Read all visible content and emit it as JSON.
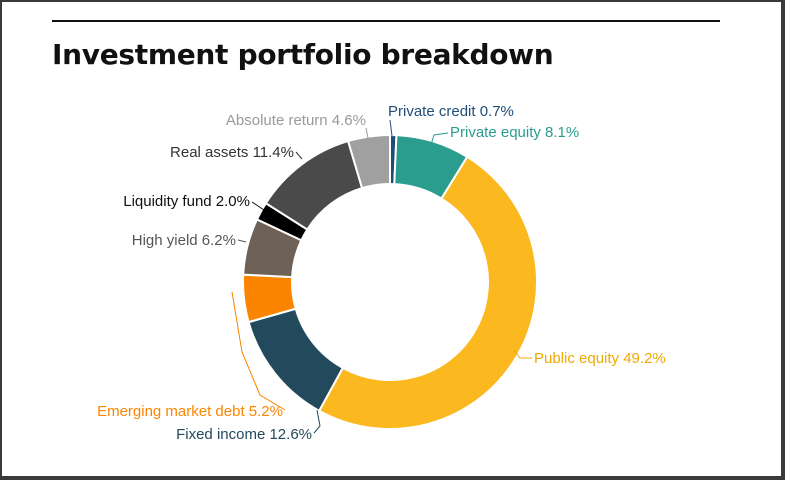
{
  "header": {
    "title": "Investment portfolio breakdown"
  },
  "chart_data": {
    "type": "pie",
    "variant": "donut",
    "title": "Investment portfolio breakdown",
    "slices": [
      {
        "label": "Private credit",
        "value": 0.7,
        "color": "#1e4d78",
        "text_color": "#1e4d78",
        "display": "Private credit 0.7%"
      },
      {
        "label": "Private equity",
        "value": 8.1,
        "color": "#2a9d8f",
        "text_color": "#2a9d8f",
        "display": "Private equity 8.1%"
      },
      {
        "label": "Public equity",
        "value": 49.2,
        "color": "#fbb81f",
        "text_color": "#f0a800",
        "display": "Public equity 49.2%"
      },
      {
        "label": "Fixed income",
        "value": 12.6,
        "color": "#234a5c",
        "text_color": "#234a5c",
        "display": "Fixed income 12.6%"
      },
      {
        "label": "Emerging market debt",
        "value": 5.2,
        "color": "#fb8500",
        "text_color": "#fb8500",
        "display": "Emerging market debt 5.2%"
      },
      {
        "label": "High yield",
        "value": 6.2,
        "color": "#6e6258",
        "text_color": "#555555",
        "display": "High yield 6.2%"
      },
      {
        "label": "Liquidity fund",
        "value": 2.0,
        "color": "#000000",
        "text_color": "#111111",
        "display": "Liquidity fund 2.0%"
      },
      {
        "label": "Real assets",
        "value": 11.4,
        "color": "#4a4a4a",
        "text_color": "#333333",
        "display": "Real assets 11.4%"
      },
      {
        "label": "Absolute return",
        "value": 4.6,
        "color": "#a0a0a0",
        "text_color": "#9a9a9a",
        "display": "Absolute return 4.6%"
      }
    ],
    "legend": "none",
    "labels": "outside with leader lines"
  }
}
